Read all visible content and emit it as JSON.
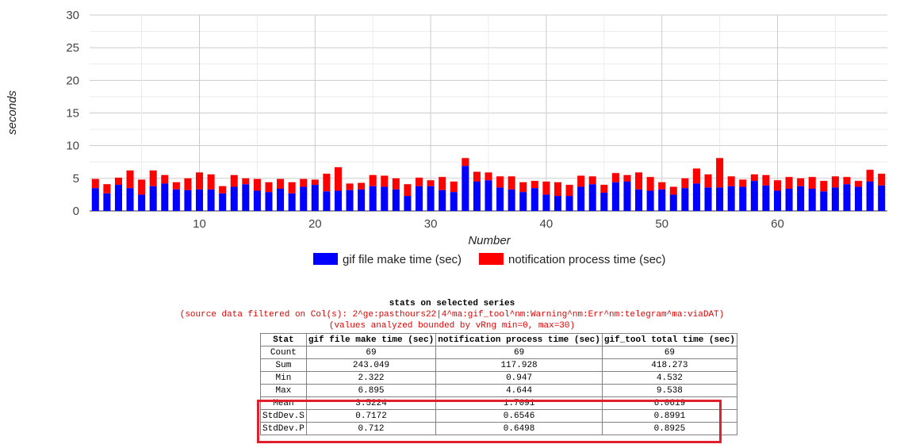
{
  "chart_data": {
    "type": "bar",
    "stacked": true,
    "xlabel": "Number",
    "ylabel": "seconds",
    "ylim": [
      0,
      30
    ],
    "yticks": [
      0,
      5,
      10,
      15,
      20,
      25,
      30
    ],
    "xticks": [
      10,
      20,
      30,
      40,
      50,
      60
    ],
    "x": [
      1,
      2,
      3,
      4,
      5,
      6,
      7,
      8,
      9,
      10,
      11,
      12,
      13,
      14,
      15,
      16,
      17,
      18,
      19,
      20,
      21,
      22,
      23,
      24,
      25,
      26,
      27,
      28,
      29,
      30,
      31,
      32,
      33,
      34,
      35,
      36,
      37,
      38,
      39,
      40,
      41,
      42,
      43,
      44,
      45,
      46,
      47,
      48,
      49,
      50,
      51,
      52,
      53,
      54,
      55,
      56,
      57,
      58,
      59,
      60,
      61,
      62,
      63,
      64,
      65,
      66,
      67,
      68,
      69
    ],
    "series": [
      {
        "name": "gif file make time (sec)",
        "color": "#0000ff",
        "values": [
          3.5,
          2.7,
          4.0,
          3.5,
          2.5,
          3.8,
          4.2,
          3.3,
          3.2,
          3.3,
          3.3,
          2.7,
          3.7,
          4.1,
          3.1,
          2.9,
          3.4,
          2.7,
          3.7,
          4.0,
          3.0,
          3.1,
          3.2,
          3.3,
          3.8,
          3.7,
          3.3,
          2.3,
          3.8,
          3.8,
          3.2,
          2.9,
          6.9,
          4.5,
          4.7,
          3.6,
          3.3,
          2.9,
          3.5,
          2.5,
          2.3,
          2.3,
          3.7,
          4.1,
          2.8,
          4.4,
          4.5,
          3.3,
          3.1,
          3.3,
          2.5,
          3.5,
          4.2,
          3.6,
          3.6,
          3.8,
          3.7,
          4.6,
          3.9,
          3.1,
          3.4,
          3.8,
          3.4,
          3.0,
          3.6,
          4.1,
          3.7,
          4.5,
          3.9
        ]
      },
      {
        "name": "notification process time (sec)",
        "color": "#ff0000",
        "values": [
          1.4,
          1.4,
          1.1,
          2.7,
          2.3,
          2.4,
          1.3,
          1.1,
          1.8,
          2.6,
          2.3,
          1.1,
          1.8,
          0.9,
          1.8,
          1.5,
          1.5,
          1.7,
          1.2,
          0.8,
          2.7,
          3.6,
          1.0,
          1.0,
          1.7,
          1.7,
          1.7,
          1.8,
          1.3,
          0.9,
          2.0,
          1.6,
          1.2,
          1.5,
          1.2,
          1.7,
          2.0,
          1.5,
          1.1,
          2.0,
          2.1,
          1.7,
          1.7,
          1.2,
          1.2,
          1.4,
          1.0,
          2.6,
          2.1,
          1.1,
          1.2,
          1.5,
          2.3,
          2.0,
          4.5,
          1.5,
          1.1,
          1.0,
          1.6,
          1.6,
          1.8,
          1.2,
          1.8,
          1.6,
          1.7,
          1.1,
          0.9,
          1.8,
          1.8
        ]
      }
    ]
  },
  "stats": {
    "title": "stats on selected series",
    "source_note": "(source data filtered on Col(s): 2^ge:pasthours22|4^ma:gif_tool^nm:Warning^nm:Err^nm:telegram^ma:viaDAT)",
    "range_note": "(values analyzed bounded by vRng min=0, max=30)",
    "headers": [
      "Stat",
      "gif file make time (sec)",
      "notification process time (sec)",
      "gif_tool total time (sec)"
    ],
    "rows": [
      [
        "Count",
        "69",
        "69",
        "69"
      ],
      [
        "Sum",
        "243.049",
        "117.928",
        "418.273"
      ],
      [
        "Min",
        "2.322",
        "0.947",
        "4.532"
      ],
      [
        "Max",
        "6.895",
        "4.644",
        "9.538"
      ],
      [
        "Mean",
        "3.5224",
        "1.7091",
        "6.0619"
      ],
      [
        "StdDev.S",
        "0.7172",
        "0.6546",
        "0.8991"
      ],
      [
        "StdDev.P",
        "0.712",
        "0.6498",
        "0.8925"
      ]
    ]
  }
}
